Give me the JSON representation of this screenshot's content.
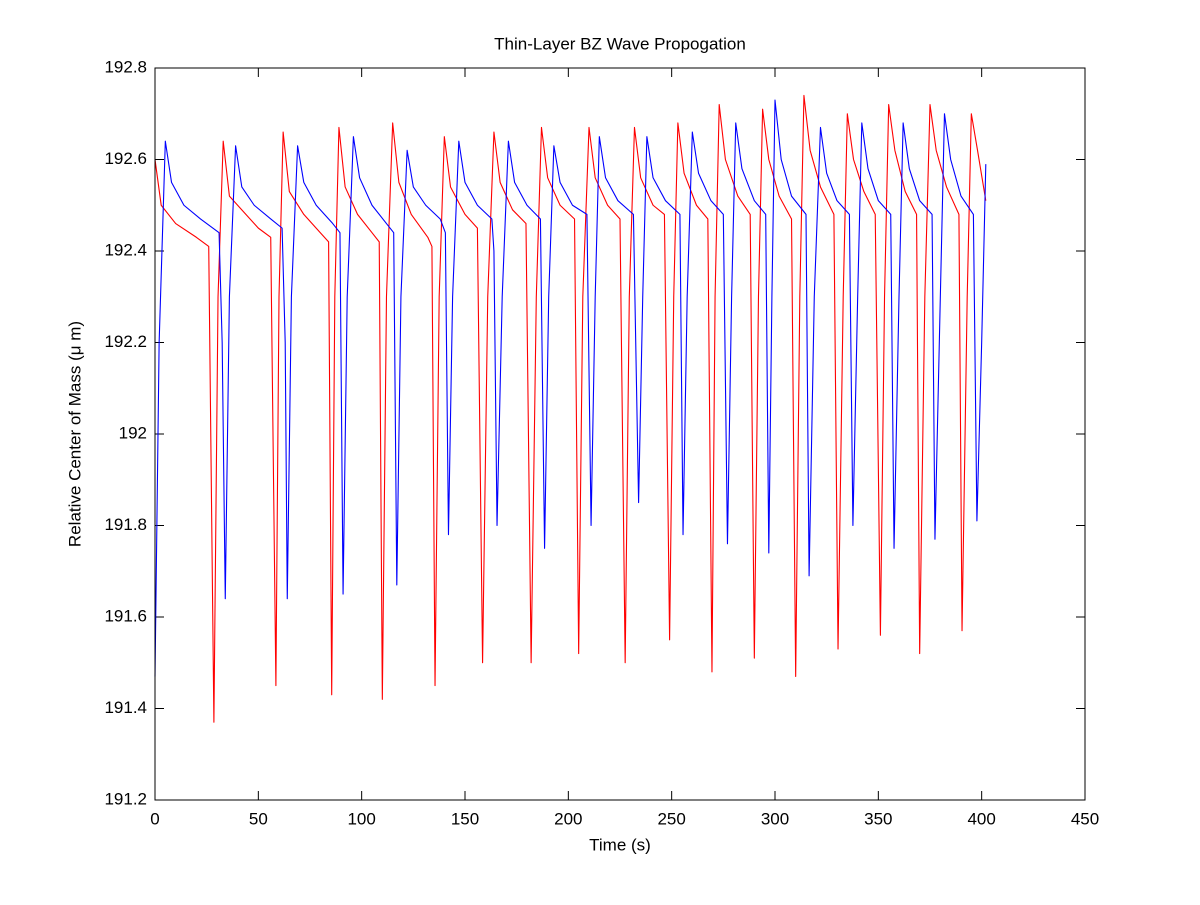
{
  "chart_data": {
    "type": "line",
    "title": "Thin-Layer BZ Wave Propogation",
    "x_label": "Time (s)",
    "y_label": "Relative Center of Mass (μ m)",
    "xlim": [
      0,
      450
    ],
    "xticks": [
      0,
      50,
      100,
      150,
      200,
      250,
      300,
      350,
      400,
      450
    ],
    "ylim": [
      191.2,
      192.8
    ],
    "yticks": [
      191.2,
      191.4,
      191.6,
      191.8,
      192,
      192.2,
      192.4,
      192.6,
      192.8
    ],
    "grid": false,
    "series": [
      {
        "color": "#ff0000",
        "x": [
          0,
          3,
          10,
          20,
          26,
          28.5,
          30.5,
          33,
          36,
          42,
          50,
          56,
          58.5,
          60,
          62,
          65,
          72,
          80,
          84,
          85.5,
          87,
          89,
          92,
          98,
          105,
          108.5,
          110,
          112,
          115,
          118,
          124,
          132,
          134,
          135.5,
          137.5,
          140,
          143,
          150,
          156,
          158.5,
          161,
          164,
          167,
          173,
          179.5,
          182,
          184.5,
          187,
          190,
          196,
          203,
          205,
          207,
          210,
          213,
          219,
          225,
          227.5,
          229.5,
          232,
          235,
          241,
          246.5,
          249,
          251,
          253,
          256,
          262,
          267.5,
          269.5,
          271,
          273,
          276,
          282,
          288,
          290,
          292,
          294,
          297,
          302,
          308,
          310,
          312,
          314,
          317,
          322,
          328.5,
          330.5,
          333,
          335,
          338,
          343,
          348.5,
          351,
          353,
          355,
          358,
          363,
          368.5,
          370,
          372.5,
          375,
          378,
          383,
          389,
          390.5,
          393,
          395,
          398,
          402
        ],
        "values": [
          192.6,
          192.5,
          192.46,
          192.43,
          192.41,
          191.37,
          192.3,
          192.64,
          192.52,
          192.49,
          192.45,
          192.43,
          191.45,
          192.3,
          192.66,
          192.53,
          192.48,
          192.44,
          192.42,
          191.43,
          192.3,
          192.67,
          192.54,
          192.48,
          192.44,
          192.42,
          191.42,
          192.3,
          192.68,
          192.55,
          192.48,
          192.43,
          192.41,
          191.45,
          192.3,
          192.65,
          192.54,
          192.48,
          192.45,
          191.5,
          192.3,
          192.66,
          192.55,
          192.49,
          192.46,
          191.5,
          192.3,
          192.67,
          192.56,
          192.5,
          192.47,
          191.52,
          192.3,
          192.67,
          192.56,
          192.5,
          192.47,
          191.5,
          192.3,
          192.67,
          192.56,
          192.5,
          192.48,
          191.55,
          192.3,
          192.68,
          192.57,
          192.5,
          192.47,
          191.48,
          192.3,
          192.72,
          192.6,
          192.52,
          192.48,
          191.51,
          192.3,
          192.71,
          192.6,
          192.52,
          192.47,
          191.47,
          192.3,
          192.74,
          192.62,
          192.54,
          192.48,
          191.53,
          192.3,
          192.7,
          192.6,
          192.53,
          192.48,
          191.56,
          192.3,
          192.72,
          192.62,
          192.53,
          192.48,
          191.52,
          192.3,
          192.72,
          192.62,
          192.54,
          192.48,
          191.57,
          192.3,
          192.7,
          192.62,
          192.51
        ]
      },
      {
        "color": "#0000ff",
        "x": [
          0,
          2,
          5,
          8,
          14,
          22,
          31,
          32.5,
          34,
          36,
          39,
          42,
          48,
          56,
          61.5,
          63,
          64,
          66,
          69,
          72,
          78,
          86,
          89.5,
          91,
          93,
          96,
          99,
          105,
          112,
          115.5,
          117,
          119,
          122,
          125,
          131,
          138,
          140.5,
          142,
          144,
          147,
          150,
          156,
          163,
          164,
          165.5,
          168,
          171,
          174,
          180,
          186.5,
          188.5,
          190.5,
          193,
          196,
          202,
          209,
          211,
          213,
          215,
          218,
          224,
          231.5,
          234,
          236,
          238,
          241,
          247,
          254,
          255.5,
          257.5,
          260,
          263,
          269,
          275,
          277,
          279,
          281,
          284,
          290,
          295.5,
          297,
          298.5,
          300,
          303,
          308,
          315,
          316.5,
          319,
          322,
          325,
          330,
          336,
          337.7,
          340,
          342,
          345,
          350,
          356,
          357.6,
          360,
          362,
          365,
          370,
          376,
          377.4,
          380,
          382,
          385,
          390,
          396,
          397.7,
          400,
          402
        ],
        "values": [
          191.47,
          192.2,
          192.64,
          192.55,
          192.5,
          192.47,
          192.44,
          192.2,
          191.64,
          192.3,
          192.63,
          192.54,
          192.5,
          192.47,
          192.45,
          192.2,
          191.64,
          192.3,
          192.63,
          192.55,
          192.5,
          192.46,
          192.44,
          191.65,
          192.3,
          192.65,
          192.56,
          192.5,
          192.46,
          192.44,
          191.67,
          192.3,
          192.62,
          192.54,
          192.5,
          192.47,
          192.44,
          191.78,
          192.3,
          192.64,
          192.55,
          192.5,
          192.47,
          192.4,
          191.8,
          192.3,
          192.64,
          192.55,
          192.5,
          192.47,
          191.75,
          192.3,
          192.63,
          192.55,
          192.5,
          192.48,
          191.8,
          192.3,
          192.65,
          192.56,
          192.51,
          192.48,
          191.85,
          192.3,
          192.65,
          192.56,
          192.51,
          192.48,
          191.78,
          192.3,
          192.66,
          192.57,
          192.51,
          192.48,
          191.76,
          192.3,
          192.68,
          192.58,
          192.51,
          192.48,
          191.74,
          192.3,
          192.73,
          192.6,
          192.52,
          192.48,
          191.69,
          192.3,
          192.67,
          192.57,
          192.51,
          192.48,
          191.8,
          192.3,
          192.68,
          192.58,
          192.51,
          192.48,
          191.75,
          192.3,
          192.68,
          192.58,
          192.51,
          192.48,
          191.77,
          192.3,
          192.7,
          192.6,
          192.52,
          192.48,
          191.81,
          192.2,
          192.59
        ]
      }
    ]
  }
}
